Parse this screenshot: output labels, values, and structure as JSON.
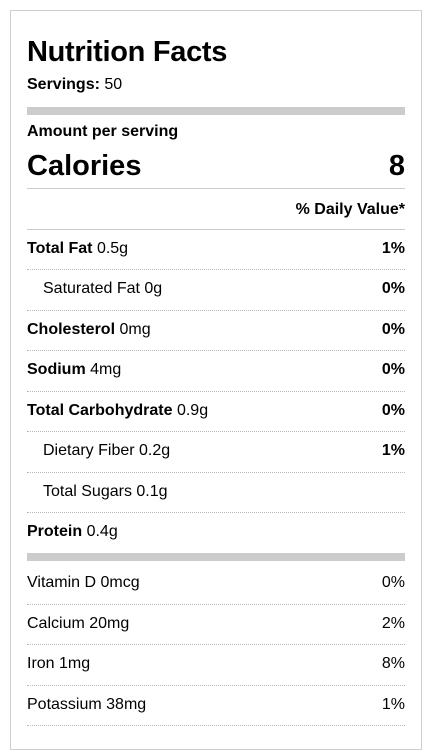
{
  "label": {
    "title": "Nutrition Facts",
    "servings_label": "Servings:",
    "servings_value": "50",
    "amount_per_serving": "Amount per serving",
    "calories_label": "Calories",
    "calories_value": "8",
    "daily_value_header": "% Daily Value*",
    "nutrients": [
      {
        "name": "Total Fat",
        "amount": "0.5g",
        "pct": "1%"
      },
      {
        "name": "Saturated Fat",
        "amount": "0g",
        "pct": "0%"
      },
      {
        "name": "Cholesterol",
        "amount": "0mg",
        "pct": "0%"
      },
      {
        "name": "Sodium",
        "amount": "4mg",
        "pct": "0%"
      },
      {
        "name": "Total Carbohydrate",
        "amount": "0.9g",
        "pct": "0%"
      },
      {
        "name": "Dietary Fiber",
        "amount": "0.2g",
        "pct": "1%"
      },
      {
        "name": "Total Sugars",
        "amount": "0.1g",
        "pct": ""
      },
      {
        "name": "Protein",
        "amount": "0.4g",
        "pct": ""
      }
    ],
    "vitamins": [
      {
        "name": "Vitamin D",
        "amount": "0mcg",
        "pct": "0%"
      },
      {
        "name": "Calcium",
        "amount": "20mg",
        "pct": "2%"
      },
      {
        "name": "Iron",
        "amount": "1mg",
        "pct": "8%"
      },
      {
        "name": "Potassium",
        "amount": "38mg",
        "pct": "1%"
      }
    ],
    "colors": {
      "thick_bar": "#cccccc",
      "border": "#cfcfcf",
      "text": "#000000"
    }
  }
}
